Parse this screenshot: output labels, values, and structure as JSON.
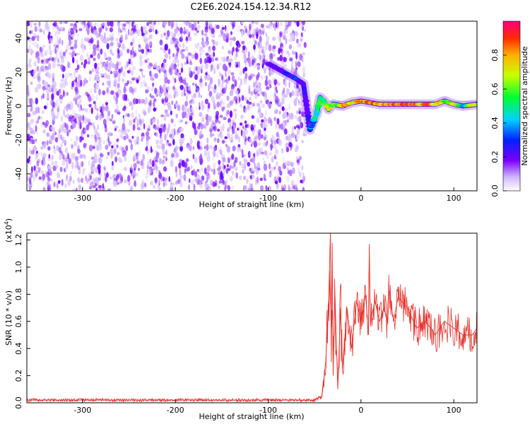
{
  "title": "C2E6.2024.154.12.34.R12",
  "colorbar": {
    "label": "Normalized spectral amplitude",
    "ticks": [
      "0.0",
      "0.2",
      "0.4",
      "0.6",
      "0.8"
    ]
  },
  "chart_data": [
    {
      "type": "heatmap",
      "title": "C2E6.2024.154.12.34.R12",
      "xlabel": "Height of straight line (km)",
      "ylabel": "Frequency (Hz)",
      "xlim": [
        -360,
        125
      ],
      "ylim": [
        -50,
        50
      ],
      "xticks": [
        -300,
        -200,
        -100,
        0,
        100
      ],
      "yticks": [
        -40,
        -20,
        0,
        20,
        40
      ],
      "colorbar_range": [
        0,
        1
      ],
      "grid": false,
      "noise_region_x": [
        -360,
        -60
      ],
      "signal_track": {
        "x": [
          -100,
          -90,
          -80,
          -70,
          -62,
          -58,
          -55,
          -52,
          -48,
          -44,
          -40,
          -35,
          -30,
          -20,
          -10,
          0,
          10,
          20,
          30,
          40,
          50,
          60,
          70,
          80,
          90,
          100,
          110,
          125
        ],
        "y": [
          25,
          22,
          19,
          16,
          13,
          -2,
          -14,
          -10,
          -5,
          5,
          3,
          -2,
          1,
          0,
          2,
          3,
          2,
          1,
          1,
          1,
          1,
          1,
          1,
          1,
          3,
          1,
          0,
          1
        ],
        "amplitude": [
          0.25,
          0.3,
          0.3,
          0.35,
          0.3,
          0.3,
          0.45,
          0.5,
          0.55,
          0.6,
          0.65,
          0.85,
          0.7,
          0.9,
          0.85,
          0.9,
          0.9,
          0.95,
          0.95,
          0.9,
          0.95,
          0.9,
          0.95,
          0.9,
          0.7,
          0.9,
          0.6,
          0.9
        ]
      }
    },
    {
      "type": "line",
      "xlabel": "Height of straight line (km)",
      "ylabel": "SNR (10 * v/v)",
      "y_scale_label": "(x10^4)",
      "xlim": [
        -360,
        125
      ],
      "ylim": [
        0,
        1.25
      ],
      "xticks": [
        -300,
        -200,
        -100,
        0,
        100
      ],
      "yticks": [
        "0.0",
        "0.2",
        "0.4",
        "0.6",
        "0.8",
        "1.0",
        "1.2"
      ],
      "color": "#e8312b",
      "series": [
        {
          "x": [
            -360,
            -100,
            -50,
            -42,
            -38,
            -35,
            -33,
            -32,
            -31,
            -30,
            -28,
            -25,
            -22,
            -20,
            -15,
            -10,
            -5,
            0,
            5,
            8,
            9,
            10,
            15,
            20,
            25,
            28,
            30,
            35,
            40,
            50,
            60,
            70,
            80,
            90,
            100,
            110,
            120,
            125
          ],
          "y": [
            0.02,
            0.02,
            0.02,
            0.05,
            0.3,
            0.7,
            1.25,
            0.3,
            1.18,
            0.2,
            0.8,
            0.1,
            0.7,
            0.25,
            0.7,
            0.4,
            0.75,
            0.6,
            0.8,
            0.5,
            1.17,
            0.6,
            0.75,
            0.6,
            0.7,
            0.6,
            0.85,
            0.6,
            0.78,
            0.7,
            0.55,
            0.6,
            0.5,
            0.6,
            0.55,
            0.5,
            0.5,
            0.55
          ]
        }
      ]
    }
  ]
}
